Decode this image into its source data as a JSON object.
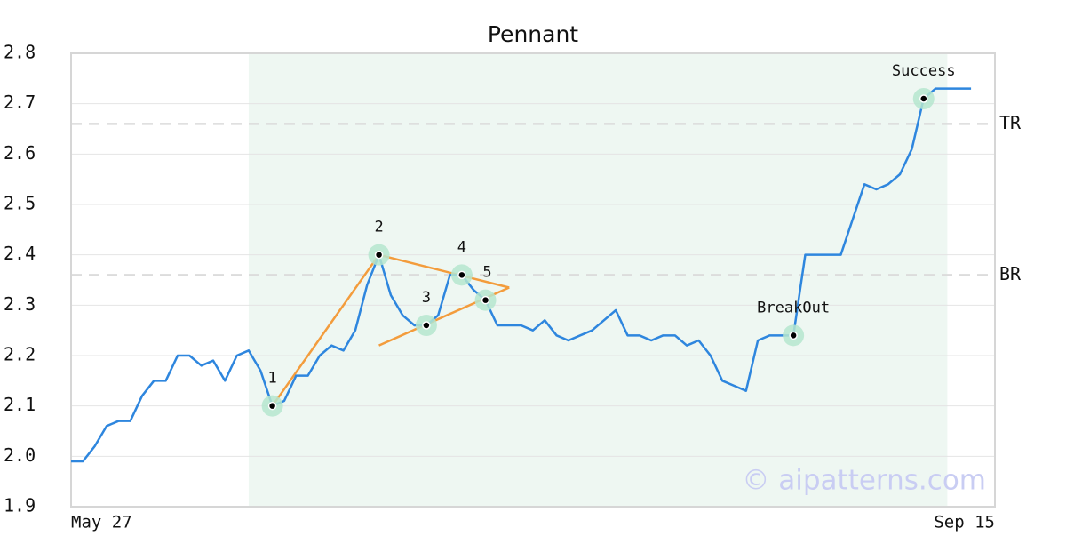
{
  "chart_data": {
    "type": "line",
    "title": "Pennant",
    "categories": [
      "May 27",
      null,
      null,
      null,
      null,
      null,
      null,
      null,
      null,
      null,
      null,
      null,
      null,
      null,
      null,
      null,
      null,
      null,
      null,
      null,
      null,
      null,
      null,
      null,
      null,
      null,
      null,
      null,
      null,
      null,
      null,
      null,
      null,
      null,
      null,
      null,
      null,
      null,
      null,
      null,
      null,
      null,
      null,
      null,
      null,
      null,
      null,
      null,
      null,
      null,
      null,
      null,
      null,
      null,
      null,
      null,
      null,
      null,
      null,
      null,
      null,
      null,
      null,
      null,
      null,
      null,
      null,
      null,
      null,
      null,
      null,
      null,
      null,
      null,
      null,
      "Sep 15",
      null
    ],
    "values": [
      1.99,
      1.99,
      2.02,
      2.06,
      2.07,
      2.07,
      2.12,
      2.15,
      2.15,
      2.2,
      2.2,
      2.18,
      2.19,
      2.15,
      2.2,
      2.21,
      2.17,
      2.1,
      2.11,
      2.16,
      2.16,
      2.2,
      2.22,
      2.21,
      2.25,
      2.34,
      2.4,
      2.32,
      2.28,
      2.26,
      2.26,
      2.28,
      2.36,
      2.36,
      2.33,
      2.31,
      2.26,
      2.26,
      2.26,
      2.25,
      2.27,
      2.24,
      2.23,
      2.24,
      2.25,
      2.27,
      2.29,
      2.24,
      2.24,
      2.23,
      2.24,
      2.24,
      2.22,
      2.23,
      2.2,
      2.15,
      2.14,
      2.13,
      2.23,
      2.24,
      2.24,
      2.24,
      2.4,
      2.4,
      2.4,
      2.4,
      2.47,
      2.54,
      2.53,
      2.54,
      2.56,
      2.61,
      2.71,
      2.73,
      2.73,
      2.73,
      2.73
    ],
    "color": "#2e86de",
    "ylim": [
      1.9,
      2.8
    ],
    "yticks": [
      1.9,
      {
        "value": 2,
        "label": "2.0"
      },
      2.1,
      2.2,
      2.3,
      2.4,
      2.5,
      2.6,
      2.7,
      2.8
    ],
    "grid": true,
    "highlight_range": [
      15,
      74
    ],
    "levels": [
      {
        "label": "TR",
        "value": 2.66
      },
      {
        "label": "BR",
        "value": 2.36
      }
    ],
    "markers": [
      {
        "label": "1",
        "x": 17,
        "value": 2.1
      },
      {
        "label": "2",
        "x": 26,
        "value": 2.4
      },
      {
        "label": "3",
        "x": 30,
        "value": 2.26
      },
      {
        "label": "4",
        "x": 33,
        "value": 2.36
      },
      {
        "label": "5",
        "x": 35,
        "value": 2.31
      },
      {
        "label": "BreakOut",
        "x": 61,
        "value": 2.24
      },
      {
        "label": "Success",
        "x": 72,
        "value": 2.71
      }
    ],
    "trendline_color": "#f39c3c",
    "trendlines": [
      {
        "x": [
          17,
          26
        ],
        "values": [
          2.1,
          2.4
        ]
      },
      {
        "x": [
          26,
          37
        ],
        "values": [
          2.4,
          2.335
        ]
      },
      {
        "x": [
          26,
          37
        ],
        "values": [
          2.22,
          2.335
        ]
      }
    ],
    "watermark": "© aipatterns.com"
  }
}
